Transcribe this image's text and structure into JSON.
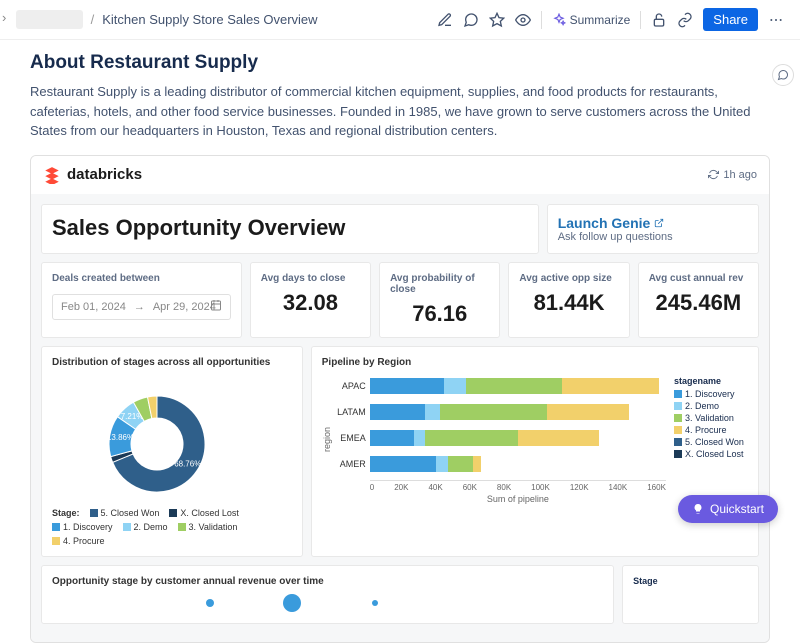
{
  "breadcrumb": {
    "first_hidden": "redacted",
    "page": "Kitchen Supply Store Sales Overview"
  },
  "topbar": {
    "summarize": "Summarize",
    "share": "Share"
  },
  "about": {
    "heading": "About Restaurant Supply",
    "body": "Restaurant Supply is a leading distributor of commercial kitchen equipment, supplies, and food products for restaurants, cafeterias, hotels, and other food service businesses. Founded in 1985, we have grown to serve customers across the United States from our headquarters in Houston, Texas and regional distribution centers."
  },
  "dashboard": {
    "brand": "databricks",
    "refresh": "1h ago",
    "title": "Sales Opportunity Overview",
    "genie": {
      "link": "Launch Genie",
      "sub": "Ask follow up questions"
    },
    "deals_label": "Deals created between",
    "date_from": "Feb 01, 2024",
    "date_to": "Apr 29, 2024",
    "metrics": [
      {
        "label": "Avg days to close",
        "value": "32.08"
      },
      {
        "label": "Avg probability of close",
        "value": "76.16"
      },
      {
        "label": "Avg active opp size",
        "value": "81.44K"
      },
      {
        "label": "Avg cust annual rev",
        "value": "245.46M"
      }
    ],
    "donut": {
      "title": "Distribution of stages across all opportunities",
      "legend_prefix": "Stage:",
      "slices": [
        {
          "name": "5. Closed Won",
          "pct": 68.76,
          "color": "#2f5f8a"
        },
        {
          "name": "X. Closed Lost",
          "pct": 2.0,
          "color": "#1b3a57"
        },
        {
          "name": "1. Discovery",
          "pct": 13.86,
          "color": "#3a9bdc"
        },
        {
          "name": "2. Demo",
          "pct": 7.21,
          "color": "#8fd3f4"
        },
        {
          "name": "3. Validation",
          "pct": 5.0,
          "color": "#9fce63"
        },
        {
          "name": "4. Procure",
          "pct": 3.17,
          "color": "#f2d06b"
        }
      ],
      "callouts": [
        {
          "label": "68.76%"
        },
        {
          "label": "13.86%"
        },
        {
          "label": "7.21%"
        }
      ]
    },
    "bars": {
      "title": "Pipeline by Region",
      "ylabel": "region",
      "xlabel": "Sum of pipeline",
      "xmax": 160,
      "xticks": [
        "0",
        "20K",
        "40K",
        "60K",
        "80K",
        "100K",
        "120K",
        "140K",
        "160K"
      ],
      "legend_title": "stagename",
      "stages": [
        {
          "name": "1. Discovery",
          "color": "#3a9bdc"
        },
        {
          "name": "2. Demo",
          "color": "#8fd3f4"
        },
        {
          "name": "3. Validation",
          "color": "#9fce63"
        },
        {
          "name": "4. Procure",
          "color": "#f2d06b"
        },
        {
          "name": "5. Closed Won",
          "color": "#2f5f8a"
        },
        {
          "name": "X. Closed Lost",
          "color": "#1b3a57"
        }
      ],
      "rows": [
        {
          "region": "APAC",
          "segments": [
            {
              "c": "#3a9bdc",
              "v": 40
            },
            {
              "c": "#8fd3f4",
              "v": 12
            },
            {
              "c": "#9fce63",
              "v": 52
            },
            {
              "c": "#f2d06b",
              "v": 52
            }
          ]
        },
        {
          "region": "LATAM",
          "segments": [
            {
              "c": "#3a9bdc",
              "v": 30
            },
            {
              "c": "#8fd3f4",
              "v": 8
            },
            {
              "c": "#9fce63",
              "v": 58
            },
            {
              "c": "#f2d06b",
              "v": 44
            }
          ]
        },
        {
          "region": "EMEA",
          "segments": [
            {
              "c": "#3a9bdc",
              "v": 24
            },
            {
              "c": "#8fd3f4",
              "v": 6
            },
            {
              "c": "#9fce63",
              "v": 50
            },
            {
              "c": "#f2d06b",
              "v": 44
            }
          ]
        },
        {
          "region": "AMER",
          "segments": [
            {
              "c": "#3a9bdc",
              "v": 36
            },
            {
              "c": "#8fd3f4",
              "v": 6
            },
            {
              "c": "#9fce63",
              "v": 14
            },
            {
              "c": "#f2d06b",
              "v": 4
            }
          ]
        }
      ]
    },
    "bottom_chart_title": "Opportunity stage by customer annual revenue over time",
    "bubbles": [
      {
        "x": 28,
        "size": 8,
        "color": "#3a9bdc"
      },
      {
        "x": 42,
        "size": 18,
        "color": "#3a9bdc"
      },
      {
        "x": 58,
        "size": 6,
        "color": "#3a9bdc"
      }
    ],
    "bottom_legend_title": "Stage"
  },
  "quickstart": "Quickstart"
}
